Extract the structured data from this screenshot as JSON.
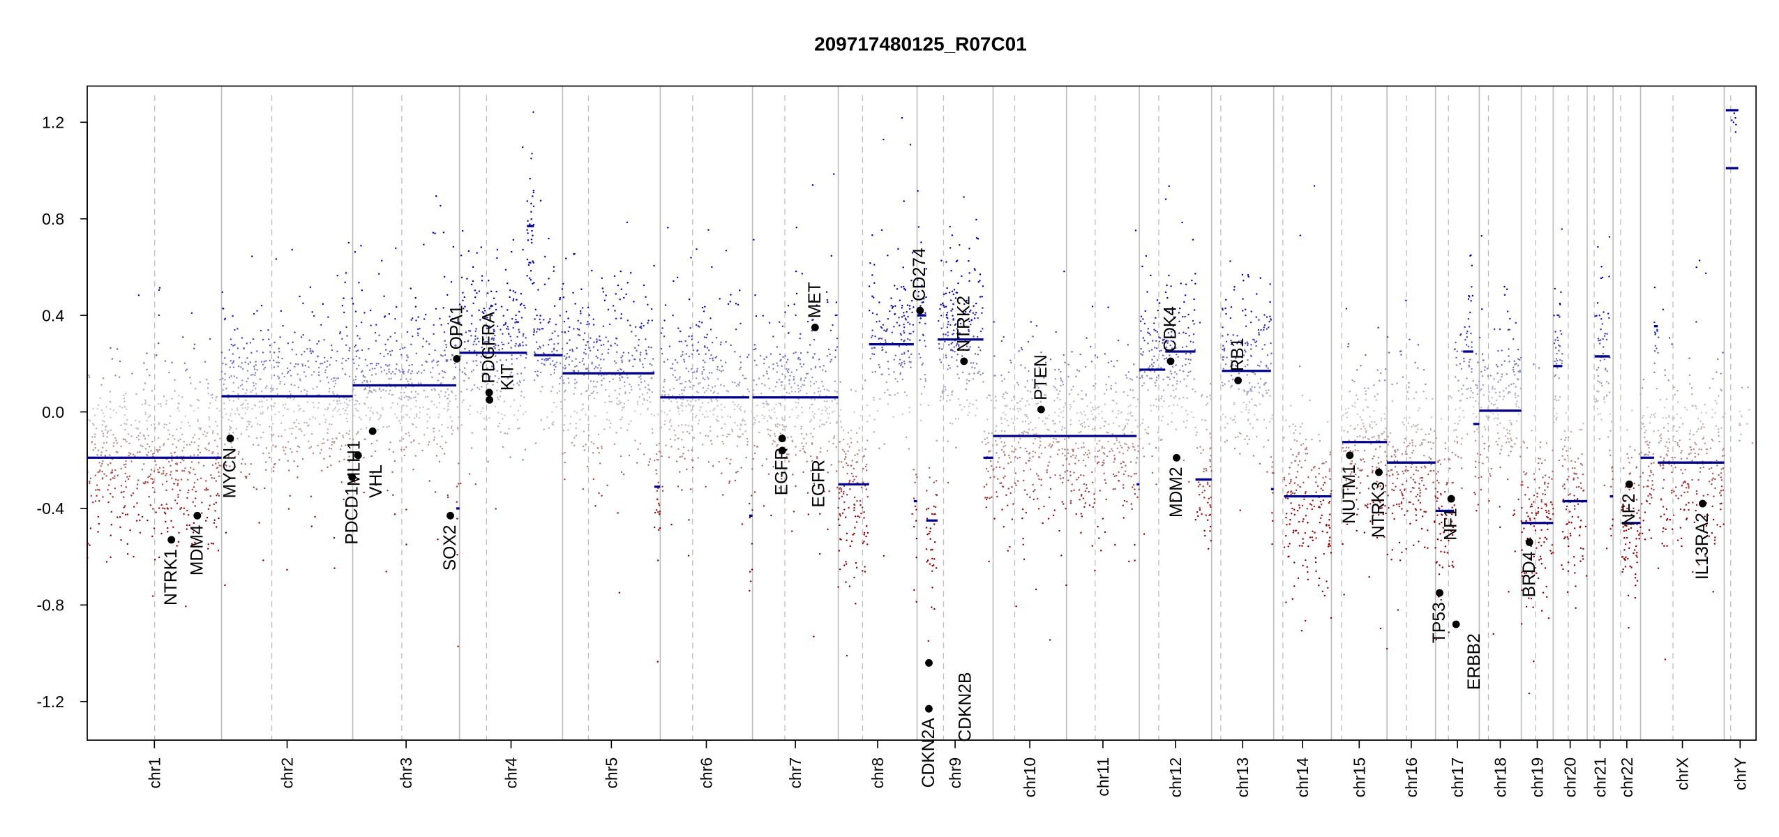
{
  "chart_data": {
    "type": "scatter",
    "title": "209717480125_R07C01",
    "xlabel": "",
    "ylabel": "",
    "ylim": [
      -1.36,
      1.35
    ],
    "yticks": [
      -1.2,
      -0.8,
      -0.4,
      0.0,
      0.4,
      0.8,
      1.2
    ],
    "ytick_labels": [
      "-1.2",
      "-0.8",
      "-0.4",
      "0.0",
      "0.4",
      "0.8",
      "1.2"
    ],
    "grid": false,
    "colors": {
      "loss": "#8b0000",
      "neutral": "#c8c8c8",
      "gain": "#0000a8",
      "segment": "#00008b",
      "gene": "#000000",
      "boundary": "#bebebe"
    },
    "chromosomes": [
      {
        "name": "chr1",
        "length": 249,
        "centromere": 125
      },
      {
        "name": "chr2",
        "length": 243,
        "centromere": 93
      },
      {
        "name": "chr3",
        "length": 198,
        "centromere": 91
      },
      {
        "name": "chr4",
        "length": 191,
        "centromere": 50
      },
      {
        "name": "chr5",
        "length": 181,
        "centromere": 48
      },
      {
        "name": "chr6",
        "length": 171,
        "centromere": 60
      },
      {
        "name": "chr7",
        "length": 159,
        "centromere": 60
      },
      {
        "name": "chr8",
        "length": 146,
        "centromere": 45
      },
      {
        "name": "chr9",
        "length": 141,
        "centromere": 49
      },
      {
        "name": "chr10",
        "length": 136,
        "centromere": 40
      },
      {
        "name": "chr11",
        "length": 135,
        "centromere": 53
      },
      {
        "name": "chr12",
        "length": 134,
        "centromere": 36
      },
      {
        "name": "chr13",
        "length": 115,
        "centromere": 17
      },
      {
        "name": "chr14",
        "length": 107,
        "centromere": 17
      },
      {
        "name": "chr15",
        "length": 103,
        "centromere": 19
      },
      {
        "name": "chr16",
        "length": 90,
        "centromere": 36
      },
      {
        "name": "chr17",
        "length": 81,
        "centromere": 24
      },
      {
        "name": "chr18",
        "length": 78,
        "centromere": 17
      },
      {
        "name": "chr19",
        "length": 59,
        "centromere": 26
      },
      {
        "name": "chr20",
        "length": 63,
        "centromere": 28
      },
      {
        "name": "chr21",
        "length": 48,
        "centromere": 13
      },
      {
        "name": "chr22",
        "length": 51,
        "centromere": 14
      },
      {
        "name": "chrX",
        "length": 155,
        "centromere": 60
      },
      {
        "name": "chrY",
        "length": 59,
        "centromere": 12
      }
    ],
    "segments": [
      {
        "chrom": "chr1",
        "start": 0,
        "end": 249,
        "value": -0.19
      },
      {
        "chrom": "chr2",
        "start": 0,
        "end": 243,
        "value": 0.065
      },
      {
        "chrom": "chr3",
        "start": 0,
        "end": 192,
        "value": 0.11
      },
      {
        "chrom": "chr3",
        "start": 192,
        "end": 198,
        "value": -0.4
      },
      {
        "chrom": "chr4",
        "start": 0,
        "end": 125,
        "value": 0.245
      },
      {
        "chrom": "chr4",
        "start": 125,
        "end": 138,
        "value": 0.77
      },
      {
        "chrom": "chr4",
        "start": 138,
        "end": 191,
        "value": 0.235
      },
      {
        "chrom": "chr5",
        "start": 0,
        "end": 170,
        "value": 0.16
      },
      {
        "chrom": "chr5",
        "start": 170,
        "end": 181,
        "value": -0.31
      },
      {
        "chrom": "chr6",
        "start": 0,
        "end": 165,
        "value": 0.06
      },
      {
        "chrom": "chr6",
        "start": 165,
        "end": 171,
        "value": -0.43
      },
      {
        "chrom": "chr7",
        "start": 0,
        "end": 159,
        "value": 0.06
      },
      {
        "chrom": "chr8",
        "start": 0,
        "end": 57,
        "value": -0.3
      },
      {
        "chrom": "chr8",
        "start": 57,
        "end": 140,
        "value": 0.28
      },
      {
        "chrom": "chr8",
        "start": 140,
        "end": 146,
        "value": -0.37
      },
      {
        "chrom": "chr9",
        "start": 0,
        "end": 17,
        "value": 0.4
      },
      {
        "chrom": "chr9",
        "start": 17,
        "end": 38,
        "value": -0.45
      },
      {
        "chrom": "chr9",
        "start": 38,
        "end": 123,
        "value": 0.3
      },
      {
        "chrom": "chr9",
        "start": 123,
        "end": 141,
        "value": -0.19
      },
      {
        "chrom": "chr10",
        "start": 0,
        "end": 136,
        "value": -0.1
      },
      {
        "chrom": "chr11",
        "start": 0,
        "end": 130,
        "value": -0.1
      },
      {
        "chrom": "chr11",
        "start": 130,
        "end": 135,
        "value": -0.3
      },
      {
        "chrom": "chr12",
        "start": 0,
        "end": 48,
        "value": 0.175
      },
      {
        "chrom": "chr12",
        "start": 48,
        "end": 104,
        "value": 0.25
      },
      {
        "chrom": "chr12",
        "start": 104,
        "end": 134,
        "value": -0.28
      },
      {
        "chrom": "chr13",
        "start": 19,
        "end": 110,
        "value": 0.17
      },
      {
        "chrom": "chr13",
        "start": 110,
        "end": 115,
        "value": -0.32
      },
      {
        "chrom": "chr14",
        "start": 19,
        "end": 107,
        "value": -0.35
      },
      {
        "chrom": "chr15",
        "start": 20,
        "end": 103,
        "value": -0.125
      },
      {
        "chrom": "chr16",
        "start": 0,
        "end": 90,
        "value": -0.21
      },
      {
        "chrom": "chr17",
        "start": 0,
        "end": 34,
        "value": -0.41
      },
      {
        "chrom": "chr17",
        "start": 51,
        "end": 70,
        "value": 0.25
      },
      {
        "chrom": "chr17",
        "start": 70,
        "end": 81,
        "value": -0.05
      },
      {
        "chrom": "chr18",
        "start": 0,
        "end": 78,
        "value": 0.005
      },
      {
        "chrom": "chr19",
        "start": 0,
        "end": 59,
        "value": -0.46
      },
      {
        "chrom": "chr20",
        "start": 0,
        "end": 17,
        "value": 0.19
      },
      {
        "chrom": "chr20",
        "start": 17,
        "end": 63,
        "value": -0.37
      },
      {
        "chrom": "chr21",
        "start": 14,
        "end": 42,
        "value": 0.23
      },
      {
        "chrom": "chr21",
        "start": 42,
        "end": 48,
        "value": -0.35
      },
      {
        "chrom": "chr22",
        "start": 16,
        "end": 51,
        "value": -0.46
      },
      {
        "chrom": "chrX",
        "start": 0,
        "end": 25,
        "value": -0.19
      },
      {
        "chrom": "chrX",
        "start": 25,
        "end": 32,
        "value": 0.355
      },
      {
        "chrom": "chrX",
        "start": 32,
        "end": 155,
        "value": -0.21
      },
      {
        "chrom": "chrY",
        "start": 3,
        "end": 26,
        "value": 1.25
      },
      {
        "chrom": "chrY",
        "start": 3,
        "end": 26,
        "value": 1.01
      }
    ],
    "genes": [
      {
        "name": "NTRK1",
        "chrom": "chr1",
        "pos": 156,
        "value": -0.53
      },
      {
        "name": "MDM4",
        "chrom": "chr1",
        "pos": 204,
        "value": -0.43
      },
      {
        "name": "MYCN",
        "chrom": "chr2",
        "pos": 16,
        "value": -0.11
      },
      {
        "name": "PDCD1",
        "chrom": "chr2",
        "pos": 242,
        "value": -0.27
      },
      {
        "name": "VHL",
        "chrom": "chr3",
        "pos": 10,
        "value": -0.18
      },
      {
        "name": "MLH1",
        "chrom": "chr3",
        "pos": 37,
        "value": -0.08
      },
      {
        "name": "SOX2",
        "chrom": "chr3",
        "pos": 181,
        "value": -0.43
      },
      {
        "name": "OPA1",
        "chrom": "chr3",
        "pos": 193,
        "value": 0.22
      },
      {
        "name": "PDGFRA",
        "chrom": "chr4",
        "pos": 55,
        "value": 0.08
      },
      {
        "name": "KIT",
        "chrom": "chr4",
        "pos": 55.5,
        "value": 0.05
      },
      {
        "name": "EGFR",
        "chrom": "chr7",
        "pos": 55,
        "value": -0.11
      },
      {
        "name": "EGFR",
        "chrom": "chr7",
        "pos": 55.2,
        "value": -0.16
      },
      {
        "name": "MET",
        "chrom": "chr7",
        "pos": 116,
        "value": 0.35
      },
      {
        "name": "CD274",
        "chrom": "chr9",
        "pos": 5.5,
        "value": 0.42
      },
      {
        "name": "CDKN2A",
        "chrom": "chr9",
        "pos": 21.9,
        "value": -1.23
      },
      {
        "name": "CDKN2B",
        "chrom": "chr9",
        "pos": 22.0,
        "value": -1.04
      },
      {
        "name": "NTRK2",
        "chrom": "chr9",
        "pos": 87,
        "value": 0.21
      },
      {
        "name": "PTEN",
        "chrom": "chr10",
        "pos": 89,
        "value": 0.01
      },
      {
        "name": "CDK4",
        "chrom": "chr12",
        "pos": 58,
        "value": 0.21
      },
      {
        "name": "MDM2",
        "chrom": "chr12",
        "pos": 69,
        "value": -0.19
      },
      {
        "name": "RB1",
        "chrom": "chr13",
        "pos": 49,
        "value": 0.13
      },
      {
        "name": "NUTM1",
        "chrom": "chr15",
        "pos": 34,
        "value": -0.18
      },
      {
        "name": "NTRK3",
        "chrom": "chr15",
        "pos": 88,
        "value": -0.25
      },
      {
        "name": "TP53",
        "chrom": "chr17",
        "pos": 7.5,
        "value": -0.75
      },
      {
        "name": "NF1",
        "chrom": "chr17",
        "pos": 29,
        "value": -0.36
      },
      {
        "name": "ERBB2",
        "chrom": "chr17",
        "pos": 38,
        "value": -0.88
      },
      {
        "name": "BRD4",
        "chrom": "chr19",
        "pos": 15,
        "value": -0.54
      },
      {
        "name": "NF2",
        "chrom": "chr22",
        "pos": 30,
        "value": -0.3
      },
      {
        "name": "IL13RA2",
        "chrom": "chrX",
        "pos": 115,
        "value": -0.38
      }
    ]
  }
}
